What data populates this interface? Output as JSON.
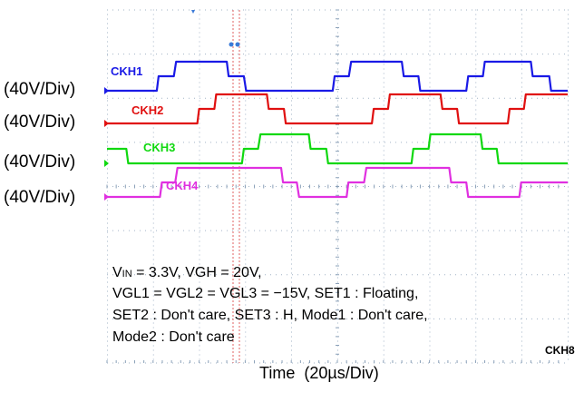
{
  "chart_data": {
    "type": "line",
    "title": "",
    "xlabel": "Time (20µs/Div)",
    "time_axis": {
      "prefix": "Time",
      "scale": "(20µs/Div)"
    },
    "divisions": {
      "x": 10,
      "y": 8
    },
    "trigger_marker": "CKH8",
    "series": [
      {
        "name": "CKH1",
        "color": "#1a1ae6",
        "scale_label": "(40V/Div)",
        "levels": {
          "low": 0,
          "mid": 1,
          "high": 2
        },
        "x": [
          0,
          1.08,
          1.12,
          1.45,
          1.5,
          2.6,
          2.64,
          2.97,
          3.02,
          4.9,
          4.94,
          5.25,
          5.3,
          6.4,
          6.44,
          6.76,
          6.8,
          7.8,
          7.84,
          8.16,
          8.2,
          9.2,
          9.24,
          9.6,
          9.64,
          10
        ],
        "y": [
          0,
          0,
          1,
          1,
          2,
          2,
          1,
          1,
          0,
          0,
          1,
          1,
          2,
          2,
          1,
          1,
          0,
          0,
          1,
          1,
          2,
          2,
          1,
          1,
          0,
          0
        ]
      },
      {
        "name": "CKH2",
        "color": "#e01010",
        "scale_label": "(40V/Div)",
        "levels": {
          "low": 0,
          "mid": 1,
          "high": 2
        },
        "x": [
          0,
          1.96,
          2.0,
          2.33,
          2.37,
          3.47,
          3.51,
          3.84,
          3.88,
          5.75,
          5.79,
          6.1,
          6.14,
          7.24,
          7.28,
          7.6,
          7.64,
          8.7,
          8.74,
          9.05,
          9.09,
          10
        ],
        "y": [
          0,
          0,
          1,
          1,
          2,
          2,
          1,
          1,
          0,
          0,
          1,
          1,
          2,
          2,
          1,
          1,
          0,
          0,
          1,
          1,
          2,
          2
        ]
      },
      {
        "name": "CKH3",
        "color": "#10d810",
        "scale_label": "(40V/Div)",
        "levels": {
          "low": 0,
          "mid": 1,
          "high": 2
        },
        "x": [
          0,
          0.42,
          0.46,
          0.78,
          0.83,
          2.93,
          2.97,
          3.28,
          3.33,
          4.38,
          4.42,
          4.76,
          4.8,
          6.61,
          6.65,
          6.98,
          7.02,
          8.11,
          8.15,
          8.46,
          8.5,
          10
        ],
        "y": [
          1,
          1,
          0,
          0,
          0,
          0,
          1,
          1,
          2,
          2,
          1,
          1,
          0,
          0,
          1,
          1,
          2,
          2,
          1,
          1,
          0,
          0
        ]
      },
      {
        "name": "CKH4",
        "color": "#e030e0",
        "scale_label": "(40V/Div)",
        "levels": {
          "low": 0,
          "mid": 1,
          "high": 2
        },
        "x": [
          0,
          1.15,
          1.19,
          1.48,
          1.53,
          3.78,
          3.82,
          4.12,
          4.17,
          5.2,
          5.24,
          5.58,
          5.63,
          7.43,
          7.47,
          7.8,
          7.84,
          8.95,
          8.99,
          10
        ],
        "y": [
          0,
          0,
          1,
          1,
          2,
          2,
          1,
          1,
          0,
          0,
          1,
          1,
          2,
          2,
          1,
          1,
          0,
          0,
          1,
          1
        ]
      }
    ],
    "annotations": [
      "VIN = 3.3V, VGH = 20V,",
      "VGL1 = VGL2 = VGL3 = −15V,  SET1 : Floating,",
      "SET2 : Don't care, SET3 : H, Mode1 : Don't care,",
      "Mode2 : Don't care"
    ],
    "annotation_vin": {
      "prefix": "V",
      "sub": "IN",
      "rest": " = 3.3V, VGH = 20V,"
    }
  }
}
